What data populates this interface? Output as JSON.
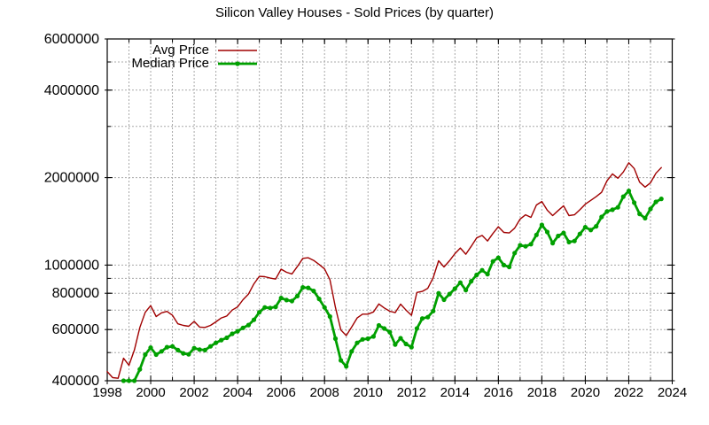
{
  "title": "Silicon Valley Houses - Sold Prices (by quarter)",
  "chart_data": {
    "type": "line",
    "title": "Silicon Valley Houses - Sold Prices (by quarter)",
    "xlabel": "",
    "ylabel": "",
    "x_unit": "year (quarterly points)",
    "y_unit": "USD",
    "y_scale": "log",
    "ylim": [
      400000,
      6000000
    ],
    "xlim": [
      1998,
      2024
    ],
    "grid": true,
    "grid_style": "dashed-gray",
    "legend_position": "top-left-inside",
    "background": "#ffffff",
    "border_color": "#000000",
    "grid_color": "#a8a8a8",
    "y_tick_values": [
      400000,
      600000,
      800000,
      1000000,
      2000000,
      4000000,
      6000000
    ],
    "y_tick_labels": [
      "400000",
      "600000",
      "800000",
      "1000000",
      "2000000",
      "4000000",
      "6000000"
    ],
    "y_grid_values": [
      500000,
      600000,
      700000,
      800000,
      900000,
      1000000,
      2000000,
      3000000,
      4000000,
      5000000
    ],
    "x_tick_labels": [
      "1998",
      "2000",
      "2002",
      "2004",
      "2006",
      "2008",
      "2010",
      "2012",
      "2014",
      "2016",
      "2018",
      "2020",
      "2022",
      "2024"
    ],
    "x_minor_tick_step_years": 1,
    "series": [
      {
        "name": "Avg Price",
        "color": "#a00000",
        "line_width": 1.4,
        "markers": false,
        "start_year": 1998,
        "start_quarter": 1,
        "points_per_year": 4,
        "values": [
          430000,
          410000,
          408000,
          478000,
          452000,
          510000,
          610000,
          688000,
          725000,
          665000,
          685000,
          693000,
          672000,
          628000,
          620000,
          616000,
          640000,
          612000,
          610000,
          620000,
          638000,
          658000,
          668000,
          700000,
          718000,
          760000,
          795000,
          862000,
          915000,
          912000,
          902000,
          895000,
          968000,
          945000,
          932000,
          988000,
          1055000,
          1060000,
          1038000,
          1005000,
          970000,
          890000,
          715000,
          598000,
          572000,
          612000,
          658000,
          678000,
          678000,
          690000,
          735000,
          712000,
          694000,
          686000,
          734000,
          700000,
          672000,
          805000,
          812000,
          832000,
          905000,
          1035000,
          985000,
          1035000,
          1095000,
          1145000,
          1090000,
          1160000,
          1240000,
          1265000,
          1210000,
          1285000,
          1355000,
          1295000,
          1290000,
          1340000,
          1440000,
          1490000,
          1460000,
          1610000,
          1655000,
          1545000,
          1480000,
          1540000,
          1600000,
          1480000,
          1490000,
          1550000,
          1620000,
          1670000,
          1720000,
          1780000,
          1950000,
          2060000,
          1990000,
          2090000,
          2250000,
          2150000,
          1930000,
          1855000,
          1920000,
          2070000,
          2165000
        ]
      },
      {
        "name": "Median Price",
        "color": "#00a000",
        "line_width": 2.8,
        "markers": true,
        "start_year": 1998,
        "start_quarter": 4,
        "points_per_year": 4,
        "values": [
          400000,
          400000,
          400000,
          438000,
          492000,
          520000,
          492000,
          505000,
          522000,
          525000,
          510000,
          497000,
          493000,
          518000,
          512000,
          510000,
          525000,
          540000,
          552000,
          562000,
          580000,
          592000,
          608000,
          622000,
          648000,
          688000,
          715000,
          712000,
          718000,
          770000,
          758000,
          752000,
          782000,
          838000,
          835000,
          815000,
          765000,
          715000,
          665000,
          558000,
          470000,
          448000,
          505000,
          540000,
          555000,
          558000,
          568000,
          620000,
          605000,
          588000,
          533000,
          560000,
          535000,
          522000,
          605000,
          655000,
          662000,
          695000,
          800000,
          760000,
          795000,
          830000,
          870000,
          820000,
          880000,
          925000,
          960000,
          930000,
          1030000,
          1060000,
          1000000,
          985000,
          1100000,
          1170000,
          1160000,
          1180000,
          1270000,
          1375000,
          1300000,
          1190000,
          1260000,
          1290000,
          1200000,
          1210000,
          1280000,
          1350000,
          1320000,
          1360000,
          1465000,
          1530000,
          1550000,
          1580000,
          1720000,
          1800000,
          1640000,
          1500000,
          1450000,
          1560000,
          1650000,
          1690000
        ]
      }
    ]
  }
}
